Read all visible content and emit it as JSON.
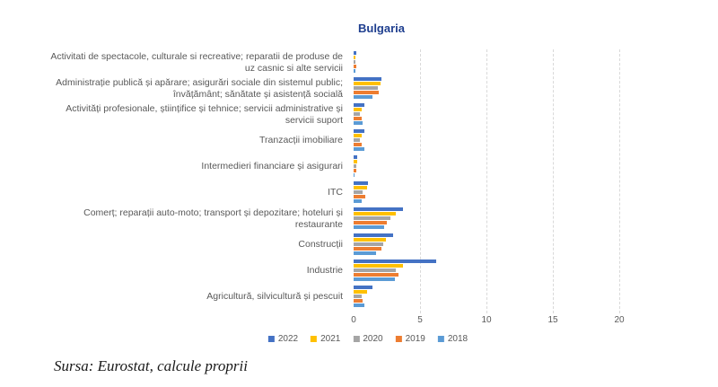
{
  "chart_data": {
    "type": "bar",
    "orientation": "horizontal",
    "title": "Bulgaria",
    "categories": [
      "Activitati de spectacole, culturale si recreative; reparatii de produse de uz casnic si alte servicii",
      "Administrație publică și apărare; asigurări sociale din sistemul public; învățământ; sănătate și asistență socială",
      "Activități profesionale, științifice și tehnice; servicii administrative și servicii suport",
      "Tranzacții imobiliare",
      "Intermedieri financiare și asigurari",
      "ITC",
      "Comerț; reparații auto-moto; transport și depozitare; hoteluri și restaurante",
      "Construcții",
      "Industrie",
      "Agricultură, silvicultură și pescuit"
    ],
    "series": [
      {
        "name": "2022",
        "color": "#4472C4",
        "values": [
          0.2,
          2.1,
          0.8,
          0.8,
          0.3,
          1.1,
          3.7,
          3.0,
          6.2,
          1.4
        ]
      },
      {
        "name": "2021",
        "color": "#FFC000",
        "values": [
          0.15,
          2.0,
          0.6,
          0.6,
          0.3,
          1.0,
          3.2,
          2.4,
          3.7,
          1.0
        ]
      },
      {
        "name": "2020",
        "color": "#A5A5A5",
        "values": [
          0.15,
          1.8,
          0.5,
          0.5,
          0.2,
          0.7,
          2.8,
          2.2,
          3.2,
          0.6
        ]
      },
      {
        "name": "2019",
        "color": "#ED7D31",
        "values": [
          0.2,
          1.9,
          0.6,
          0.6,
          0.2,
          0.9,
          2.5,
          2.1,
          3.4,
          0.7
        ]
      },
      {
        "name": "2018",
        "color": "#5B9BD5",
        "values": [
          0.15,
          1.4,
          0.7,
          0.8,
          0.1,
          0.6,
          2.3,
          1.7,
          3.1,
          0.8
        ]
      }
    ],
    "xlim": [
      0,
      20
    ],
    "xticks": [
      0,
      5,
      10,
      15,
      20
    ],
    "grid": true,
    "legend_position": "bottom"
  },
  "colors": {
    "title": "#1F3F8F",
    "axis_text": "#595959",
    "gridline": "#D9D9D9"
  },
  "source_note": "Sursa: Eurostat, calcule proprii"
}
